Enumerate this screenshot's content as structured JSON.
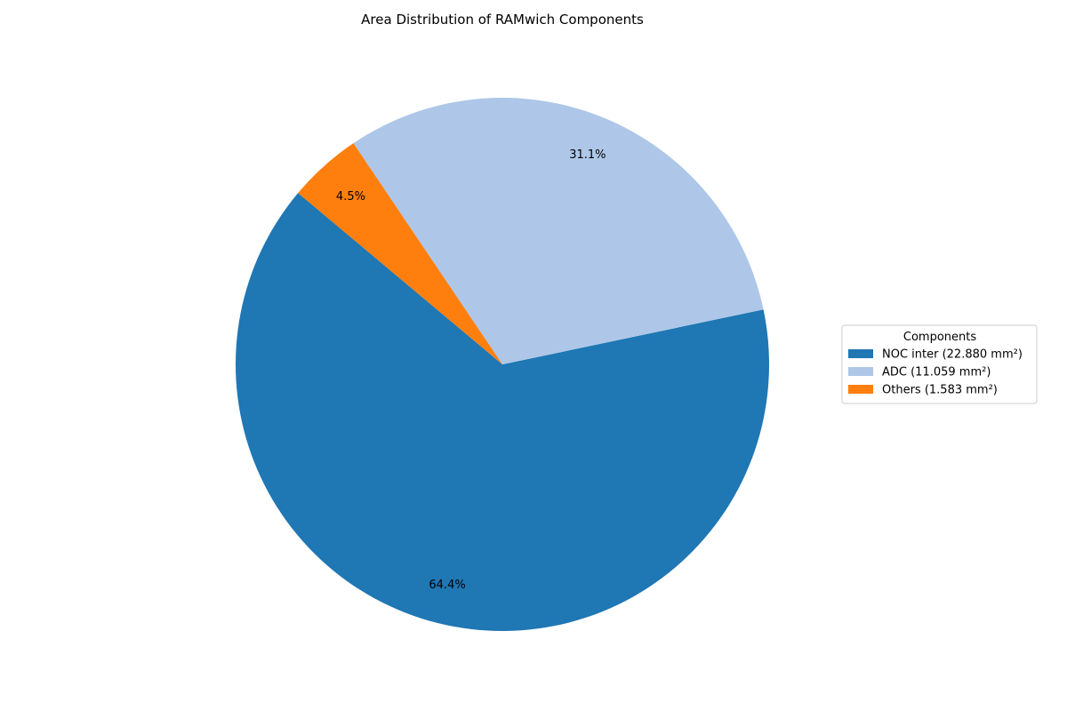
{
  "chart_data": {
    "type": "pie",
    "title": "Area Distribution of RAMwich Components",
    "legend_title": "Components",
    "legend_position": "center-right",
    "start_angle_deg": 140,
    "direction": "counterclockwise",
    "slices": [
      {
        "label": "NOC inter (22.880 mm²)",
        "value": 22.88,
        "pct_label": "64.4%",
        "color": "#1f77b4"
      },
      {
        "label": "ADC (11.059 mm²)",
        "value": 11.059,
        "pct_label": "31.1%",
        "color": "#aec7e8"
      },
      {
        "label": "Others (1.583 mm²)",
        "value": 1.583,
        "pct_label": "4.5%",
        "color": "#ff7f0e"
      }
    ]
  }
}
